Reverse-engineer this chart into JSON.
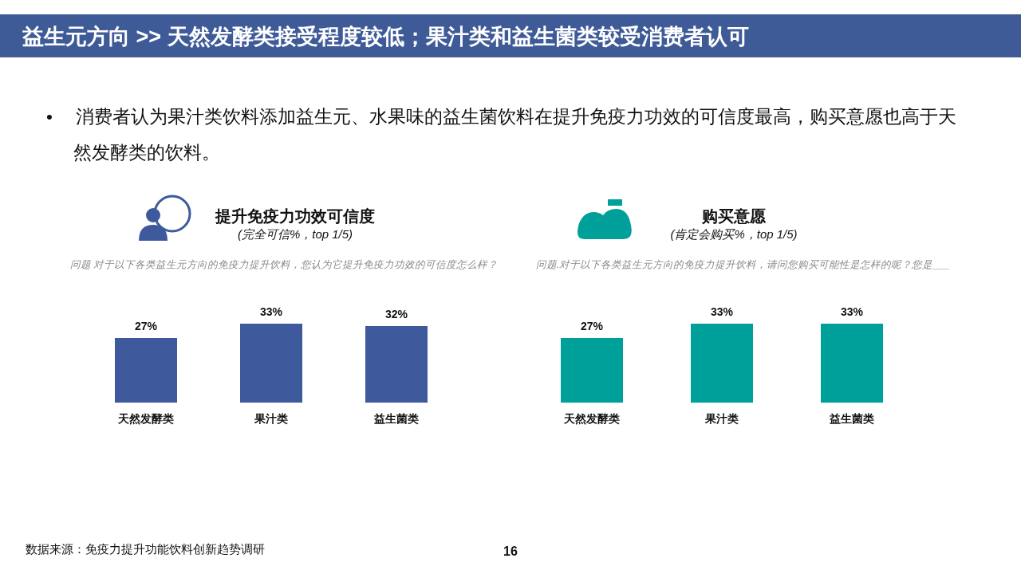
{
  "chart_data": [
    {
      "type": "other",
      "title": "益生元方向 >> 天然发酵类接受程度较低；果汁类和益生菌类较受消费者认可",
      "annotations": [
        "• 消费者认为果汁类饮料添加益生元、水果味的益生菌饮料在提升免疫力功效的可信度最高，购买意愿也高于天然发酵类的饮料。",
        "数据来源：免疫力提升功能饮料创新趋势调研",
        "16"
      ]
    },
    {
      "type": "bar",
      "title": "提升免疫力功效可信度",
      "subtitle": "(完全可信%，top 1/5)",
      "annotations": [
        "问题 对于以下各类益生元方向的免疫力提升饮料，您认为它提升免疫力功效的可信度怎么样？"
      ],
      "categories": [
        "天然发酵类",
        "果汁类",
        "益生菌类"
      ],
      "values": [
        27,
        33,
        32
      ],
      "value_labels": [
        "27%",
        "33%",
        "32%"
      ],
      "color": "#3f5a9c"
    },
    {
      "type": "bar",
      "title": "购买意愿",
      "subtitle": "(肯定会购买%，top 1/5)",
      "annotations": [
        "问题.对于以下各类益生元方向的免疫力提升饮料，请问您购买可能性是怎样的呢？您是___"
      ],
      "categories": [
        "天然发酵类",
        "果汁类",
        "益生菌类"
      ],
      "values": [
        27,
        33,
        33
      ],
      "value_labels": [
        "27%",
        "33%",
        "33%"
      ],
      "color": "#00a09a"
    }
  ]
}
